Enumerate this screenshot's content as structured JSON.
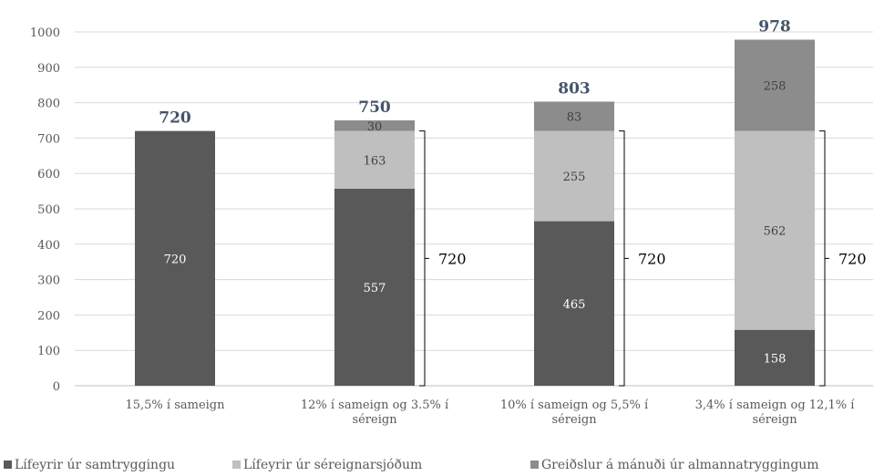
{
  "chart_data": {
    "type": "bar",
    "stacked": true,
    "categories": [
      [
        "15,5% í sameign"
      ],
      [
        "12% í sameign og 3.5% í",
        "séreign"
      ],
      [
        "10% í sameign og 5,5% í",
        "séreign"
      ],
      [
        "3,4% í sameign og 12,1% í",
        "séreign"
      ]
    ],
    "series": [
      {
        "name": "Lífeyrir úr samtryggingu",
        "color": "#595959",
        "values": [
          720,
          557,
          465,
          158
        ]
      },
      {
        "name": "Lífeyrir úr séreignarsjóðum",
        "color": "#bfbfbf",
        "values": [
          0,
          163,
          255,
          562
        ]
      },
      {
        "name": "Greiðslur á mánuði úr almannatryggingum",
        "color": "#8c8c8c",
        "values": [
          0,
          30,
          83,
          258
        ]
      }
    ],
    "totals": [
      "720",
      "750",
      "803",
      "978"
    ],
    "brackets": [
      {
        "category_index": 1,
        "from": 0,
        "to": 720,
        "label": "720"
      },
      {
        "category_index": 2,
        "from": 0,
        "to": 720,
        "label": "720"
      },
      {
        "category_index": 3,
        "from": 0,
        "to": 720,
        "label": "720"
      }
    ],
    "ylim": [
      0,
      1000
    ],
    "yticks": [
      0,
      100,
      200,
      300,
      400,
      500,
      600,
      700,
      800,
      900,
      1000
    ],
    "grid": true,
    "legend": "bottom"
  }
}
